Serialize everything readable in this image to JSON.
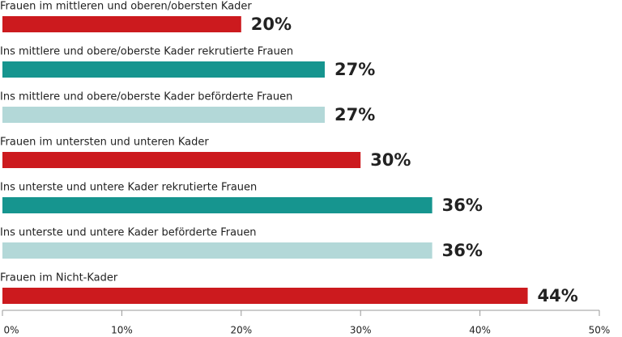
{
  "chart_data": {
    "type": "bar",
    "orientation": "horizontal",
    "categories": [
      "Frauen im mittleren und oberen/obersten Kader",
      "Ins mittlere und obere/oberste Kader rekrutierte Frauen",
      "Ins mittlere und obere/oberste Kader beförderte Frauen",
      "Frauen im untersten und unteren Kader",
      "Ins unterste und untere Kader rekrutierte Frauen",
      "Ins unterste und untere Kader beförderte Frauen",
      "Frauen im Nicht-Kader"
    ],
    "values": [
      20,
      27,
      27,
      30,
      36,
      36,
      44
    ],
    "value_labels": [
      "20%",
      "27%",
      "27%",
      "30%",
      "36%",
      "36%",
      "44%"
    ],
    "colors": [
      "#cc1a1e",
      "#16958f",
      "#b3d8d8",
      "#cc1a1e",
      "#16958f",
      "#b3d8d8",
      "#cc1a1e"
    ],
    "value_label_colors": [
      "#cc1a1e",
      "#17808a",
      "#5fc3bd",
      "#cc1a1e",
      "#17808a",
      "#5fc3bd",
      "#cc1a1e"
    ],
    "xlim": [
      0,
      50
    ],
    "xticks": [
      {
        "value": 0,
        "label": "0%"
      },
      {
        "value": 10,
        "label": "10%"
      },
      {
        "value": 20,
        "label": "20%"
      },
      {
        "value": 30,
        "label": "30%"
      },
      {
        "value": 40,
        "label": "40%"
      },
      {
        "value": 50,
        "label": "50%"
      }
    ]
  }
}
